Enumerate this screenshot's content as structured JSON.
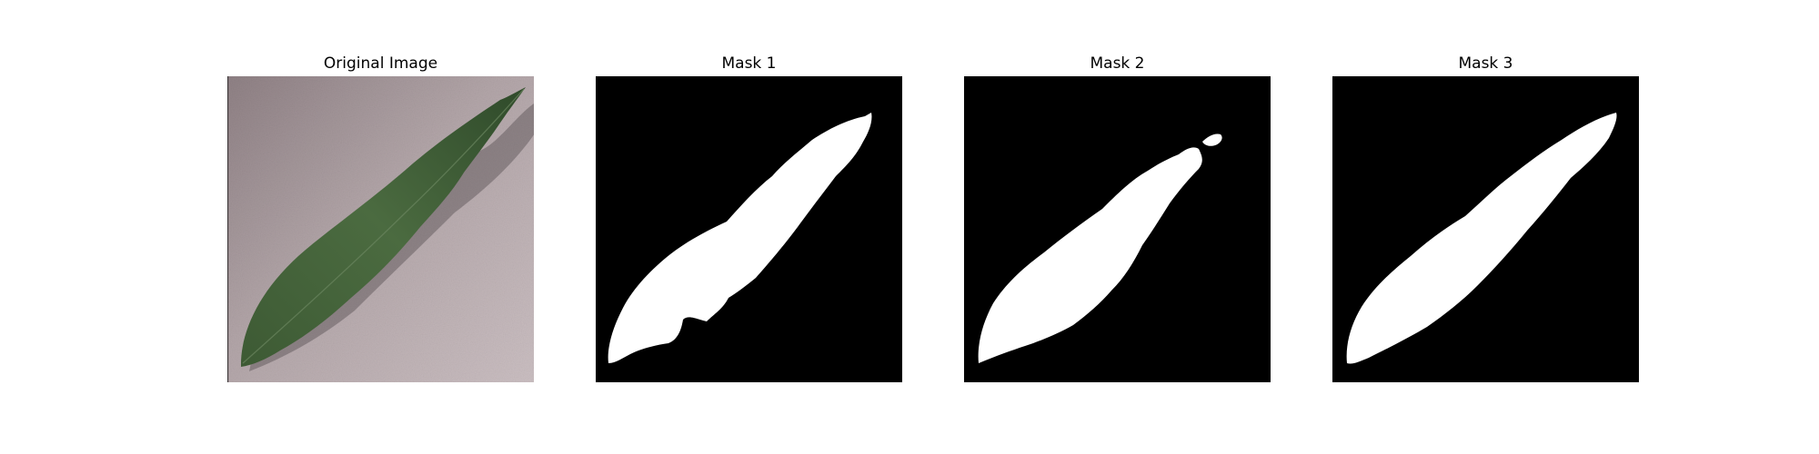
{
  "figure": {
    "panels": [
      {
        "title": "Original Image",
        "kind": "photo"
      },
      {
        "title": "Mask 1",
        "kind": "binary-mask"
      },
      {
        "title": "Mask 2",
        "kind": "binary-mask"
      },
      {
        "title": "Mask 3",
        "kind": "binary-mask"
      }
    ],
    "colors": {
      "mask_background": "#000000",
      "mask_foreground": "#ffffff",
      "leaf_dark": "#2f4a2a",
      "leaf_mid": "#4a6a3e",
      "surface_light": "#c9bdc0",
      "surface_dark": "#8a7c80",
      "shadow": "#3a3436"
    }
  }
}
